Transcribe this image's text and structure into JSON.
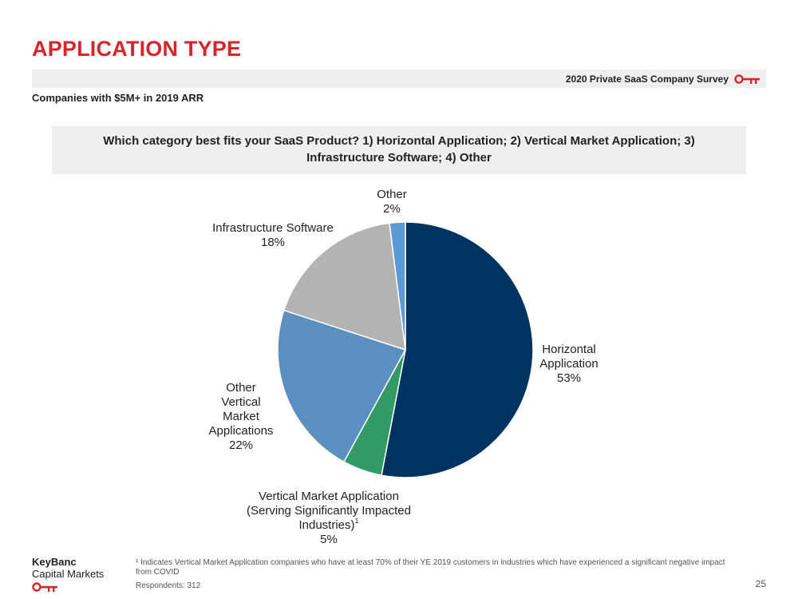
{
  "header": {
    "title": "APPLICATION TYPE",
    "survey": "2020 Private SaaS Company Survey",
    "subtitle": "Companies with $5M+ in 2019 ARR"
  },
  "question_line1": "Which category best fits your SaaS Product? 1)  Horizontal Application; 2) Vertical Market Application; 3)",
  "question_line2": "Infrastructure Software; 4) Other",
  "chart_data": {
    "type": "pie",
    "title": "",
    "slices": [
      {
        "label_lines": [
          "Horizontal",
          "Application"
        ],
        "value": 53,
        "value_label": "53%",
        "color": "#00335f"
      },
      {
        "label_lines": [
          "Vertical Market Application",
          "(Serving Significantly Impacted",
          "Industries)"
        ],
        "footnote_mark": "1",
        "value": 5,
        "value_label": "5%",
        "color": "#339966"
      },
      {
        "label_lines": [
          "Other",
          "Vertical",
          "Market",
          "Applications"
        ],
        "value": 22,
        "value_label": "22%",
        "color": "#5a8fc0"
      },
      {
        "label_lines": [
          "Infrastructure Software"
        ],
        "value": 18,
        "value_label": "18%",
        "color": "#b3b3b3"
      },
      {
        "label_lines": [
          "Other"
        ],
        "value": 2,
        "value_label": "2%",
        "color": "#5b9bd5"
      }
    ]
  },
  "footer": {
    "footnote": "¹ Indicates Vertical Market Application companies who have at least 70% of their YE 2019 customers in industries which have experienced a significant negative impact from COVID",
    "respondents": "Respondents: 312",
    "page_number": "25",
    "logo_line1": "KeyBanc",
    "logo_line2": "Capital Markets"
  },
  "colors": {
    "accent": "#d6252b"
  },
  "icons": {
    "brand": "key-icon"
  }
}
